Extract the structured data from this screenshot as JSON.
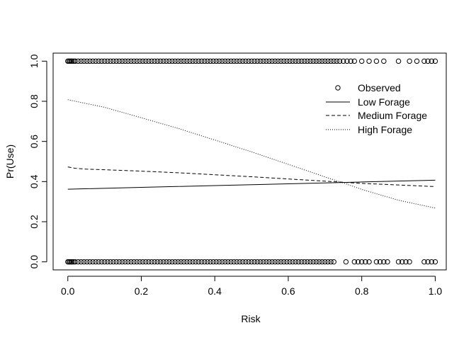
{
  "chart_data": {
    "type": "scatter",
    "title": "",
    "xlabel": "Risk",
    "ylabel": "Pr(Use)",
    "xlim": [
      -0.04,
      1.03
    ],
    "ylim": [
      -0.04,
      1.04
    ],
    "x_ticks": [
      0.0,
      0.2,
      0.4,
      0.6,
      0.8,
      1.0
    ],
    "x_tick_labels": [
      "0.0",
      "0.2",
      "0.4",
      "0.6",
      "0.8",
      "1.0"
    ],
    "y_ticks": [
      0.0,
      0.2,
      0.4,
      0.6,
      0.8,
      1.0
    ],
    "y_tick_labels": [
      "0.0",
      "0.2",
      "0.4",
      "0.6",
      "0.8",
      "1.0"
    ],
    "grid": false,
    "legend_position": "top-right",
    "observed": {
      "name": "Observed",
      "y1_x": [
        0.0,
        0.003,
        0.006,
        0.009,
        0.012,
        0.016,
        0.02,
        0.028,
        0.036,
        0.044,
        0.052,
        0.06,
        0.068,
        0.076,
        0.084,
        0.092,
        0.1,
        0.108,
        0.116,
        0.124,
        0.132,
        0.14,
        0.148,
        0.156,
        0.164,
        0.172,
        0.18,
        0.188,
        0.196,
        0.204,
        0.212,
        0.22,
        0.228,
        0.236,
        0.244,
        0.252,
        0.26,
        0.268,
        0.276,
        0.284,
        0.292,
        0.3,
        0.308,
        0.316,
        0.324,
        0.332,
        0.34,
        0.348,
        0.356,
        0.364,
        0.372,
        0.38,
        0.388,
        0.396,
        0.404,
        0.412,
        0.42,
        0.428,
        0.436,
        0.444,
        0.452,
        0.46,
        0.468,
        0.476,
        0.484,
        0.492,
        0.5,
        0.508,
        0.516,
        0.524,
        0.532,
        0.54,
        0.548,
        0.556,
        0.564,
        0.572,
        0.58,
        0.588,
        0.596,
        0.604,
        0.612,
        0.62,
        0.628,
        0.636,
        0.644,
        0.652,
        0.66,
        0.668,
        0.676,
        0.684,
        0.692,
        0.7,
        0.708,
        0.716,
        0.724,
        0.732,
        0.74,
        0.75,
        0.76,
        0.77,
        0.78,
        0.8,
        0.82,
        0.84,
        0.86,
        0.9,
        0.93,
        0.95,
        0.97,
        0.98,
        0.99,
        1.0
      ],
      "y0_x": [
        0.0,
        0.003,
        0.006,
        0.009,
        0.012,
        0.016,
        0.02,
        0.028,
        0.036,
        0.044,
        0.052,
        0.06,
        0.068,
        0.076,
        0.084,
        0.092,
        0.1,
        0.108,
        0.116,
        0.124,
        0.132,
        0.14,
        0.148,
        0.156,
        0.164,
        0.172,
        0.18,
        0.188,
        0.196,
        0.204,
        0.212,
        0.22,
        0.228,
        0.236,
        0.244,
        0.252,
        0.26,
        0.268,
        0.276,
        0.284,
        0.292,
        0.3,
        0.308,
        0.316,
        0.324,
        0.332,
        0.34,
        0.348,
        0.356,
        0.364,
        0.372,
        0.38,
        0.388,
        0.396,
        0.404,
        0.412,
        0.42,
        0.428,
        0.436,
        0.444,
        0.452,
        0.46,
        0.468,
        0.476,
        0.484,
        0.492,
        0.5,
        0.508,
        0.516,
        0.524,
        0.532,
        0.54,
        0.548,
        0.556,
        0.564,
        0.572,
        0.58,
        0.588,
        0.596,
        0.604,
        0.612,
        0.62,
        0.628,
        0.636,
        0.644,
        0.652,
        0.66,
        0.668,
        0.676,
        0.684,
        0.692,
        0.7,
        0.708,
        0.716,
        0.724,
        0.757,
        0.78,
        0.79,
        0.8,
        0.81,
        0.82,
        0.84,
        0.85,
        0.86,
        0.87,
        0.9,
        0.91,
        0.92,
        0.93,
        0.97,
        0.98,
        0.99,
        1.0
      ]
    },
    "series": [
      {
        "name": "Low Forage",
        "line": "solid",
        "x": [
          0.0,
          0.2,
          0.4,
          0.6,
          0.8,
          1.0
        ],
        "y": [
          0.362,
          0.371,
          0.38,
          0.389,
          0.398,
          0.407
        ]
      },
      {
        "name": "Medium Forage",
        "line": "dashed",
        "x": [
          0.0,
          0.02,
          0.05,
          0.1,
          0.2,
          0.3,
          0.4,
          0.5,
          0.6,
          0.7,
          0.8,
          0.9,
          1.0
        ],
        "y": [
          0.473,
          0.466,
          0.462,
          0.459,
          0.452,
          0.444,
          0.434,
          0.424,
          0.413,
          0.402,
          0.391,
          0.383,
          0.375
        ]
      },
      {
        "name": "High Forage",
        "line": "dotted",
        "x": [
          0.0,
          0.1,
          0.2,
          0.3,
          0.4,
          0.5,
          0.6,
          0.7,
          0.75,
          0.8,
          0.9,
          1.0
        ],
        "y": [
          0.808,
          0.77,
          0.718,
          0.665,
          0.607,
          0.548,
          0.486,
          0.423,
          0.393,
          0.361,
          0.307,
          0.268
        ]
      }
    ]
  }
}
